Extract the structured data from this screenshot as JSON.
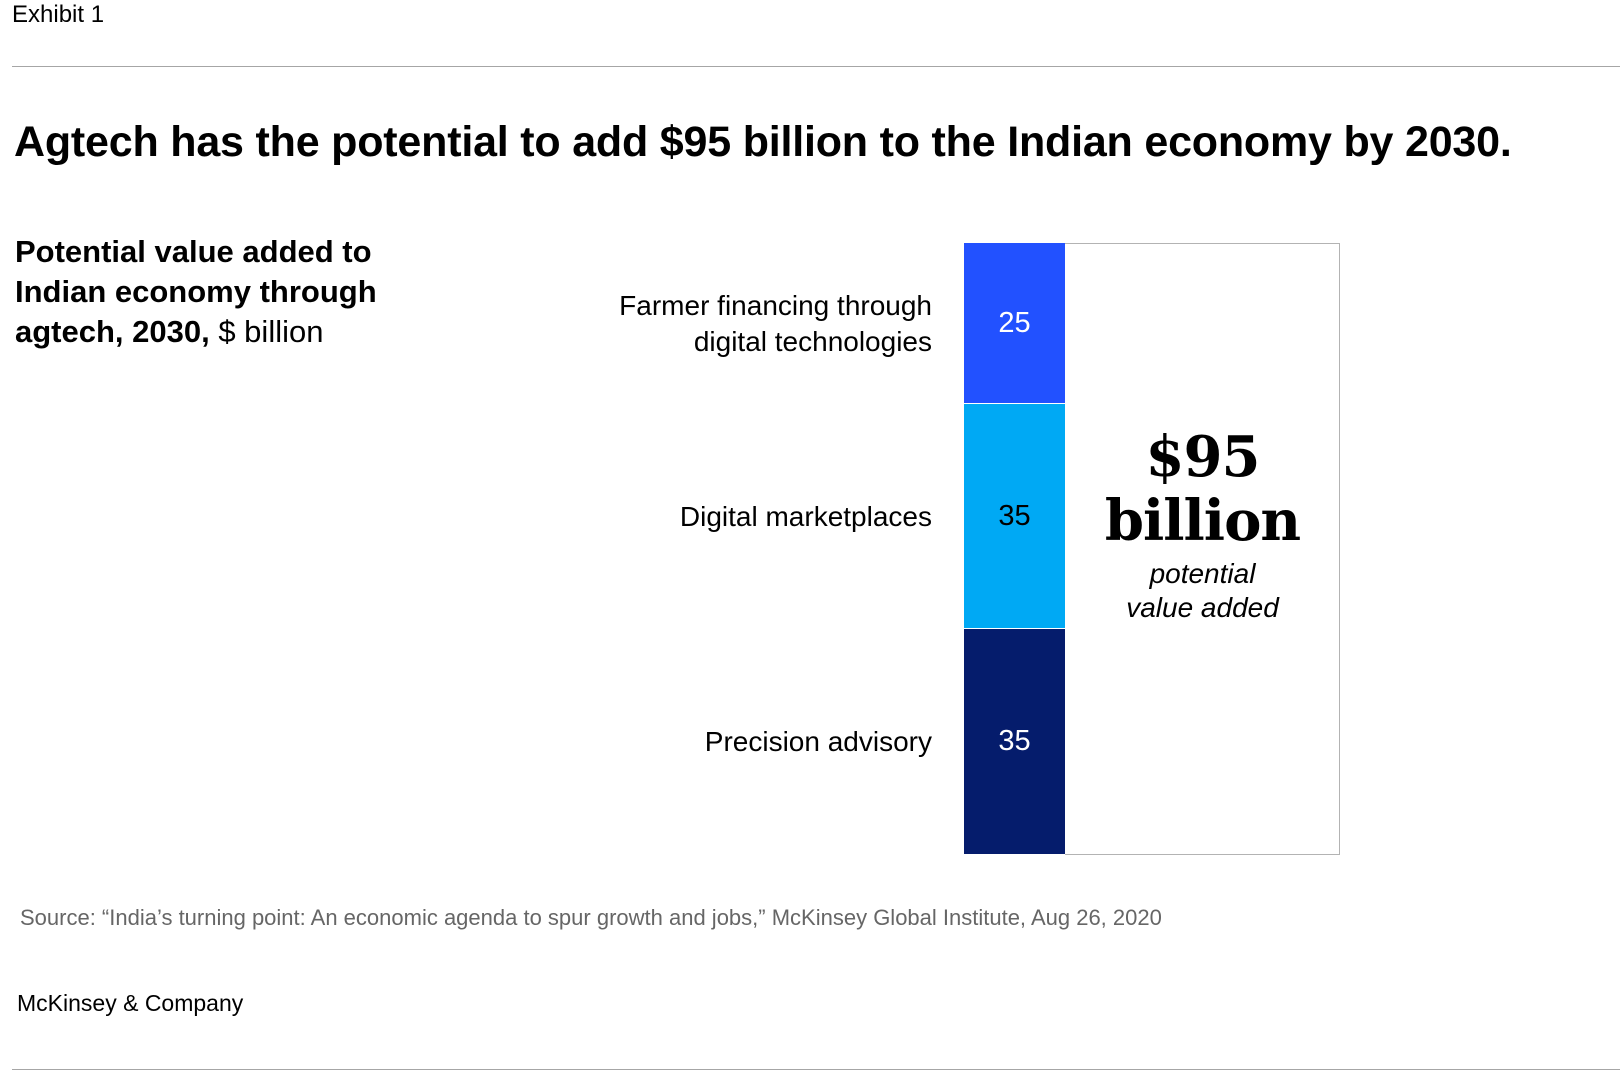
{
  "header": {
    "exhibit": "Exhibit 1",
    "headline": "Agtech has the potential to add $95 billion to the Indian economy by 2030."
  },
  "subtitle": {
    "bold": "Potential value added to Indian economy through agtech, 2030,",
    "unit": " $ billion"
  },
  "chart_data": {
    "type": "bar",
    "stacked": true,
    "orientation": "vertical",
    "title": "Potential value added to Indian economy through agtech, 2030, $ billion",
    "categories": [
      "Farmer financing through digital technologies",
      "Digital marketplaces",
      "Precision advisory"
    ],
    "category_lines": [
      [
        "Farmer financing through",
        "digital technologies"
      ],
      [
        "Digital marketplaces"
      ],
      [
        "Precision advisory"
      ]
    ],
    "values": [
      25,
      35,
      35
    ],
    "value_labels": [
      "25",
      "35",
      "35"
    ],
    "colors": [
      "#2251ff",
      "#00a9f4",
      "#051c6c"
    ],
    "label_colors": [
      "#ffffff",
      "#000000",
      "#ffffff"
    ],
    "total": {
      "value_line1": "$95",
      "value_line2": "billion",
      "caption_line1": "potential",
      "caption_line2": "value added"
    }
  },
  "footer": {
    "source": "Source: “India’s turning point: An economic agenda to spur growth and jobs,” McKinsey Global Institute, Aug 26, 2020",
    "brand": "McKinsey & Company"
  }
}
